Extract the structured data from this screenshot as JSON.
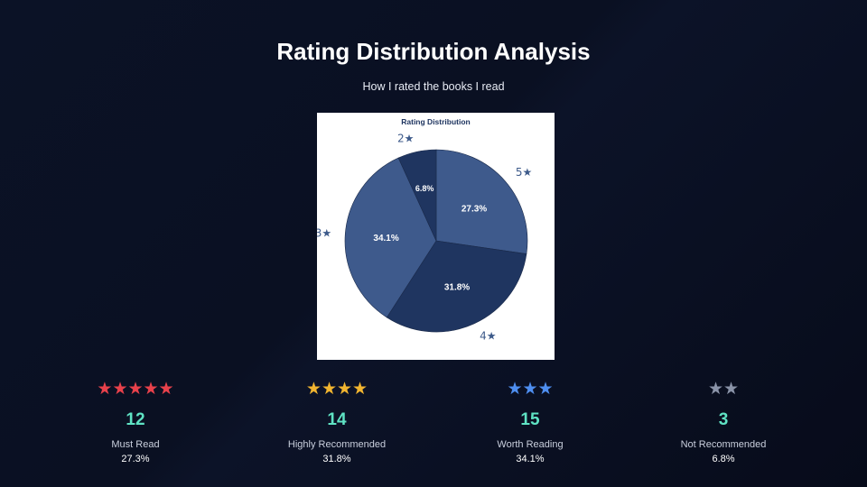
{
  "header": {
    "title": "Rating Distribution Analysis",
    "subtitle": "How I rated the books I read"
  },
  "chart_data": {
    "type": "pie",
    "title": "Rating Distribution",
    "slices": [
      {
        "label": "5★",
        "value": 27.3,
        "percent_label": "27.3%",
        "color": "#3e5a8c"
      },
      {
        "label": "4★",
        "value": 31.8,
        "percent_label": "31.8%",
        "color": "#1f3560"
      },
      {
        "label": "3★",
        "value": 34.1,
        "percent_label": "34.1%",
        "color": "#3e5a8c"
      },
      {
        "label": "2★",
        "value": 6.8,
        "percent_label": "6.8%",
        "color": "#1f3560"
      }
    ],
    "label_color": "#3d5a8a",
    "text_color": "#1f3560"
  },
  "stats": [
    {
      "stars": "★★★★★",
      "star_color": "#e8414b",
      "count": "12",
      "label": "Must Read",
      "percent": "27.3%"
    },
    {
      "stars": "★★★★",
      "star_color": "#f2b530",
      "count": "14",
      "label": "Highly Recommended",
      "percent": "31.8%"
    },
    {
      "stars": "★★★",
      "star_color": "#4e8ef0",
      "count": "15",
      "label": "Worth Reading",
      "percent": "34.1%"
    },
    {
      "stars": "★★",
      "star_color": "#8a93a8",
      "count": "3",
      "label": "Not Recommended",
      "percent": "6.8%"
    }
  ]
}
